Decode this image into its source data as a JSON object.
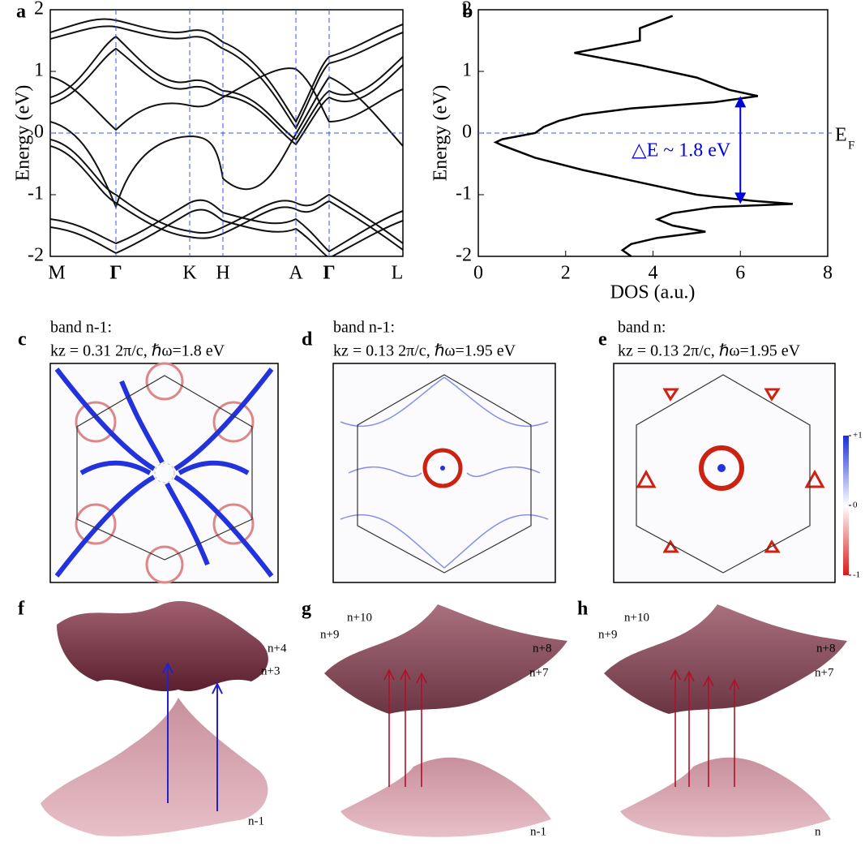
{
  "chart_data": [
    {
      "type": "bands",
      "panel_label": "a",
      "ylabel": "Energy (eV)",
      "ylim": [
        -2,
        2
      ],
      "yticks": [
        -2,
        -1,
        0,
        1,
        2
      ],
      "kpoints": [
        "M",
        "Γ",
        "K",
        "H",
        "A",
        "Γ",
        "L"
      ],
      "fermi_level": 0
    },
    {
      "type": "dos",
      "panel_label": "b",
      "xlabel": "DOS (a.u.)",
      "ylabel": "Energy (eV)",
      "xlim": [
        0,
        8
      ],
      "xticks": [
        0,
        2,
        4,
        6,
        8
      ],
      "ylim": [
        -2,
        2
      ],
      "yticks": [
        -2,
        -1,
        0,
        1,
        2
      ],
      "fermi_level": 0,
      "fermi_label": "E",
      "fermi_subscript": "F",
      "annotation": "△E ~ 1.8 eV",
      "color": "#000000",
      "energy": [
        1.9,
        1.7,
        1.5,
        1.3,
        1.1,
        0.9,
        0.7,
        0.6,
        0.5,
        0.4,
        0.3,
        0.2,
        0.1,
        0.0,
        -0.1,
        -0.15,
        -0.2,
        -0.4,
        -0.6,
        -0.8,
        -1.0,
        -1.1,
        -1.15,
        -1.2,
        -1.3,
        -1.4,
        -1.5,
        -1.6,
        -1.7,
        -1.8,
        -1.9,
        -2.0
      ],
      "dos": [
        4.45,
        3.7,
        3.7,
        2.2,
        3.7,
        5.0,
        5.75,
        6.4,
        5.4,
        3.5,
        2.4,
        1.85,
        1.5,
        1.3,
        0.55,
        0.4,
        0.55,
        1.3,
        2.4,
        3.7,
        5.0,
        6.3,
        7.2,
        5.4,
        4.45,
        4.1,
        4.45,
        5.2,
        4.1,
        3.5,
        3.3,
        3.5
      ],
      "arrow": {
        "dos": 6,
        "from": 0.6,
        "to": -1.15,
        "color": "#0000dd"
      }
    }
  ],
  "panels": {
    "c": {
      "label": "c",
      "line1": "band n-1:",
      "line2": "kz = 0.31 2π/c, ℏω=1.8 eV"
    },
    "d": {
      "label": "d",
      "line1": "band n-1:",
      "line2": "kz = 0.13 2π/c, ℏω=1.95 eV"
    },
    "e": {
      "label": "e",
      "line1": "band n:",
      "line2": "kz = 0.13 2π/c, ℏω=1.95 eV"
    },
    "f": {
      "label": "f",
      "bands": [
        "n+4",
        "n+3",
        "n-1"
      ]
    },
    "g": {
      "label": "g",
      "bands": [
        "n+10",
        "n+9",
        "n+8",
        "n+7",
        "n-1"
      ]
    },
    "h": {
      "label": "h",
      "bands": [
        "n+10",
        "n+9",
        "n+8",
        "n+7",
        "n"
      ]
    }
  },
  "colorbar": {
    "lim": [
      -1,
      1
    ],
    "ticks": [
      {
        "value": 1,
        "label": "+1"
      },
      0,
      {
        "value": -1,
        "label": "-1"
      }
    ]
  }
}
